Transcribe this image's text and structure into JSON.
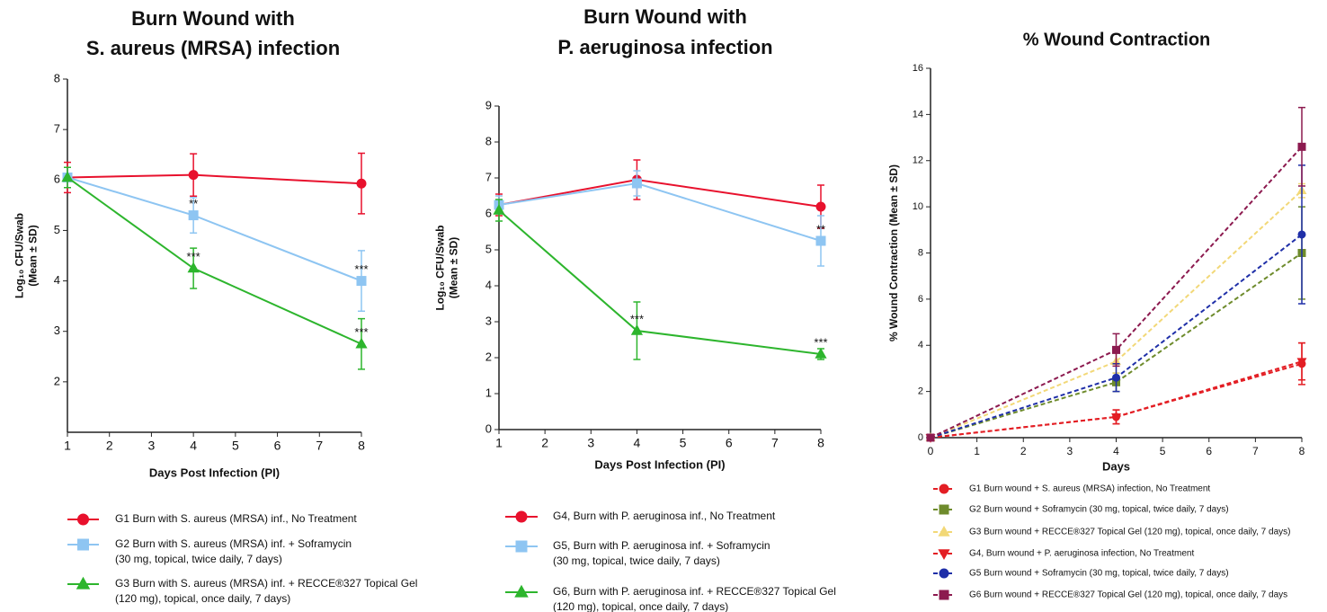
{
  "chart_data": [
    {
      "type": "line",
      "title": [
        "Burn Wound with",
        "S. aureus (MRSA) infection"
      ],
      "x_label": "Days Post Infection (PI)",
      "y_label": [
        "Log₁₀ CFU/Swab",
        "(Mean ± SD)"
      ],
      "x": [
        1,
        4,
        8
      ],
      "xlim": [
        1,
        8
      ],
      "xticks": [
        1,
        2,
        3,
        4,
        5,
        6,
        7,
        8
      ],
      "ylim": [
        1,
        8
      ],
      "yticks": [
        2,
        3,
        4,
        5,
        6,
        7,
        8
      ],
      "series": [
        {
          "name": [
            "G1 Burn with S. aureus (MRSA) inf., No Treatment"
          ],
          "color": "#e8112d",
          "marker": "circle",
          "line_style": "solid",
          "values": [
            6.05,
            6.1,
            5.93
          ],
          "errors": [
            0.3,
            0.42,
            0.6
          ],
          "labels": [
            null,
            null,
            null
          ]
        },
        {
          "name": [
            "G2 Burn with S. aureus (MRSA) inf. + Soframycin",
            "(30 mg, topical, twice daily, 7 days)"
          ],
          "color": "#8ec5f2",
          "marker": "square",
          "line_style": "solid",
          "values": [
            6.05,
            5.3,
            4.0
          ],
          "errors": [
            0.2,
            0.35,
            0.6
          ],
          "labels": [
            null,
            "**",
            "***"
          ]
        },
        {
          "name": [
            "G3 Burn with S. aureus (MRSA) inf. + RECCE®327 Topical Gel",
            "(120 mg), topical, once daily, 7 days)"
          ],
          "color": "#2db52d",
          "marker": "triangle",
          "line_style": "solid",
          "values": [
            6.05,
            4.25,
            2.75
          ],
          "errors": [
            0.2,
            0.4,
            0.5
          ],
          "labels": [
            null,
            "***",
            "***"
          ]
        }
      ]
    },
    {
      "type": "line",
      "title": [
        "Burn Wound with",
        "P. aeruginosa infection"
      ],
      "x_label": "Days Post Infection (PI)",
      "y_label": [
        "Log₁₀ CFU/Swab",
        "(Mean ± SD)"
      ],
      "x": [
        1,
        4,
        8
      ],
      "xlim": [
        1,
        8
      ],
      "xticks": [
        1,
        2,
        3,
        4,
        5,
        6,
        7,
        8
      ],
      "ylim": [
        0,
        9
      ],
      "yticks": [
        0,
        1,
        2,
        3,
        4,
        5,
        6,
        7,
        8,
        9
      ],
      "series": [
        {
          "name": [
            "G4, Burn with P. aeruginosa inf., No Treatment"
          ],
          "color": "#e8112d",
          "marker": "circle",
          "line_style": "solid",
          "values": [
            6.25,
            6.95,
            6.2
          ],
          "errors": [
            0.3,
            0.55,
            0.6
          ],
          "labels": [
            null,
            null,
            null
          ]
        },
        {
          "name": [
            "G5,  Burn with P. aeruginosa inf. + Soframycin",
            "(30 mg, topical, twice daily, 7 days)"
          ],
          "color": "#8ec5f2",
          "marker": "square",
          "line_style": "solid",
          "values": [
            6.25,
            6.85,
            5.25
          ],
          "errors": [
            0.25,
            0.35,
            0.7
          ],
          "labels": [
            null,
            null,
            "**"
          ]
        },
        {
          "name": [
            "G6, Burn with P. aeruginosa inf. + RECCE®327 Topical Gel",
            "(120 mg), topical, once daily, 7 days)"
          ],
          "color": "#2db52d",
          "marker": "triangle",
          "line_style": "solid",
          "values": [
            6.1,
            2.75,
            2.1
          ],
          "errors": [
            0.3,
            0.8,
            0.15
          ],
          "labels": [
            null,
            "***",
            "***"
          ]
        }
      ]
    },
    {
      "type": "line",
      "title": [
        "% Wound Contraction"
      ],
      "x_label": "Days",
      "y_label": [
        "% Wound Contraction (Mean ± SD)"
      ],
      "x": [
        0,
        4,
        8
      ],
      "xlim": [
        0,
        8
      ],
      "xticks": [
        0,
        1,
        2,
        3,
        4,
        5,
        6,
        7,
        8
      ],
      "ylim": [
        0,
        16
      ],
      "yticks": [
        0,
        2,
        4,
        6,
        8,
        10,
        12,
        14,
        16
      ],
      "series": [
        {
          "name": [
            "G1 Burn wound + S. aureus (MRSA) infection, No Treatment"
          ],
          "color": "#e31e24",
          "marker": "circle",
          "line_style": "dashed",
          "values": [
            0,
            0.9,
            3.2
          ],
          "errors": [
            0.1,
            0.3,
            0.9
          ],
          "labels": [
            null,
            null,
            null
          ]
        },
        {
          "name": [
            "G2 Burn wound + Soframycin (30 mg, topical, twice daily, 7 days)"
          ],
          "color": "#6e8b2c",
          "marker": "square",
          "line_style": "dashed",
          "values": [
            0,
            2.4,
            8.0
          ],
          "errors": [
            0.1,
            0.4,
            2.0
          ],
          "labels": [
            null,
            null,
            null
          ]
        },
        {
          "name": [
            "G3 Burn wound + RECCE®327 Topical Gel (120 mg), topical, once daily, 7 days)"
          ],
          "color": "#f2d877",
          "marker": "triangle",
          "line_style": "dashed",
          "values": [
            0,
            3.3,
            10.7
          ],
          "errors": [
            0.1,
            0.5,
            0.3
          ],
          "labels": [
            null,
            null,
            null
          ]
        },
        {
          "name": [
            "G4, Burn wound + P. aeruginosa infection, No Treatment"
          ],
          "color": "#e31e24",
          "marker": "triangle-down",
          "line_style": "dashed",
          "values": [
            0,
            0.9,
            3.3
          ],
          "errors": [
            0.1,
            0.3,
            0.8
          ],
          "labels": [
            null,
            null,
            null
          ]
        },
        {
          "name": [
            "G5 Burn wound + Soframycin (30 mg, topical, twice daily, 7 days)"
          ],
          "color": "#1f2fa8",
          "marker": "circle",
          "line_style": "dashed",
          "values": [
            0,
            2.6,
            8.8
          ],
          "errors": [
            0.1,
            0.6,
            3.0
          ],
          "labels": [
            null,
            null,
            null
          ]
        },
        {
          "name": [
            "G6 Burn wound + RECCE®327 Topical Gel (120 mg), topical, once daily, 7 days"
          ],
          "color": "#8c1a4f",
          "marker": "square",
          "line_style": "dashed",
          "values": [
            0,
            3.8,
            12.6
          ],
          "errors": [
            0.1,
            0.7,
            1.7
          ],
          "labels": [
            null,
            null,
            null
          ]
        }
      ]
    }
  ]
}
